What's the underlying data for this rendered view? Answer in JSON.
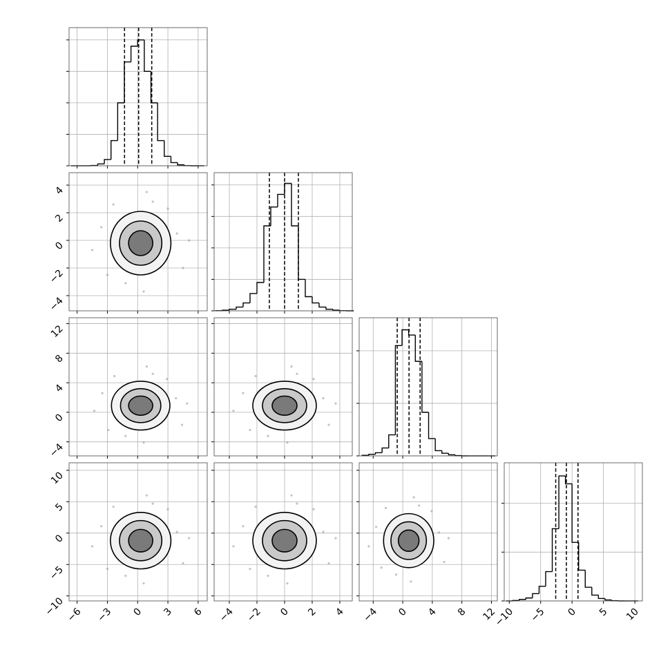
{
  "chart_data": {
    "type": "corner",
    "grid": true,
    "color": "#000000",
    "variables": [
      {
        "xlim": [
          -6.8,
          6.9
        ],
        "xticks": [
          {
            "value": -6,
            "label": "−6"
          },
          {
            "value": -3,
            "label": "−3"
          },
          0,
          3,
          6
        ],
        "quantiles": [
          -1.3,
          0.1,
          1.4
        ],
        "hist": {
          "bins": [
            -6.6,
            -5.94,
            -5.28,
            -4.62,
            -3.96,
            -3.3,
            -2.64,
            -1.98,
            -1.32,
            -0.66,
            0,
            0.66,
            1.32,
            1.98,
            2.64,
            3.3,
            3.96,
            4.62,
            5.28,
            5.94,
            6.6
          ],
          "counts": [
            0,
            0,
            0,
            10,
            60,
            200,
            800,
            2000,
            3300,
            3800,
            4000,
            3000,
            2000,
            800,
            300,
            100,
            30,
            5,
            0,
            0
          ],
          "ylim": [
            0,
            4390
          ],
          "yticks": [
            0,
            1000,
            2000,
            3000,
            4000
          ]
        }
      },
      {
        "xlim": [
          -5.1,
          4.9
        ],
        "xticks": [
          {
            "value": -4,
            "label": "−4"
          },
          {
            "value": -2,
            "label": "−2"
          },
          0,
          2,
          4
        ],
        "quantiles": [
          -1.1,
          0,
          1.0
        ],
        "hist": {
          "bins": [
            -5,
            -4.5,
            -4,
            -3.5,
            -3,
            -2.5,
            -2,
            -1.5,
            -1,
            -0.5,
            0,
            0.5,
            1,
            1.5,
            2,
            2.5,
            3,
            3.5,
            4,
            4.5,
            5
          ],
          "counts": [
            5,
            20,
            50,
            120,
            250,
            550,
            900,
            2700,
            3300,
            3700,
            4050,
            2700,
            1000,
            450,
            250,
            120,
            50,
            20,
            5,
            0
          ],
          "ylim": [
            0,
            4390
          ],
          "yticks": [
            0,
            1000,
            2000,
            3000,
            4000
          ]
        }
      },
      {
        "xlim": [
          -5.9,
          12.8
        ],
        "xticks": [
          {
            "value": -4,
            "label": "−4"
          },
          0,
          4,
          8,
          12
        ],
        "quantiles": [
          -0.75,
          0.85,
          2.35
        ],
        "hist": {
          "bins": [
            -5.5,
            -4.6,
            -3.7,
            -2.8,
            -1.9,
            -1.0,
            -0.1,
            0.8,
            1.7,
            2.6,
            3.5,
            4.4,
            5.3,
            6.2,
            7.1,
            8.0,
            8.9,
            9.8,
            10.7,
            11.6,
            12.5
          ],
          "counts": [
            10,
            30,
            60,
            150,
            400,
            2100,
            2400,
            2300,
            1800,
            830,
            330,
            100,
            50,
            20,
            5,
            0,
            0,
            0,
            0,
            0
          ],
          "ylim": [
            0,
            2630
          ],
          "yticks": [
            0,
            1000,
            2000
          ]
        }
      },
      {
        "xlim": [
          -10.8,
          11.2
        ],
        "xticks": [
          {
            "value": -10,
            "label": "−10"
          },
          {
            "value": -5,
            "label": "−5"
          },
          0,
          5,
          10
        ],
        "quantiles": [
          -2.6,
          -0.9,
          0.95
        ],
        "hist": {
          "bins": [
            -10.5,
            -9.45,
            -8.4,
            -7.35,
            -6.3,
            -5.25,
            -4.2,
            -3.15,
            -2.1,
            -1.05,
            0,
            1.05,
            2.1,
            3.15,
            4.2,
            5.25,
            6.3,
            7.35,
            8.4,
            9.45,
            10.5
          ],
          "counts": [
            0,
            10,
            30,
            60,
            150,
            300,
            600,
            1480,
            2560,
            2400,
            1200,
            630,
            280,
            120,
            50,
            20,
            5,
            0,
            0,
            0
          ],
          "ylim": [
            0,
            2830
          ],
          "yticks": [
            0,
            1000,
            2000
          ]
        }
      }
    ],
    "pairs": [
      {
        "x_var": 0,
        "y_var": 1,
        "center": [
          0.3,
          -0.2
        ],
        "contours": [
          [
            3,
            2.3
          ],
          [
            2.1,
            1.6
          ],
          [
            1.2,
            0.9
          ]
        ],
        "points": {
          "x": [
            3.9,
            -3.6,
            1.5,
            -1.2,
            4.5,
            -3.0,
            3.0,
            -2.4,
            5.1,
            -4.5,
            0.6,
            0.9
          ],
          "y": [
            0.5,
            0.95,
            2.8,
            -3.1,
            -2.0,
            -2.5,
            2.3,
            2.6,
            0.0,
            -0.7,
            -3.7,
            3.5
          ]
        }
      },
      {
        "x_var": 0,
        "y_var": 2,
        "center": [
          0.3,
          0.9
        ],
        "contours": [
          [
            2.9,
            3.3
          ],
          [
            2.0,
            2.3
          ],
          [
            1.2,
            1.3
          ]
        ],
        "points": {
          "x": [
            3.8,
            -3.5,
            1.5,
            -1.2,
            4.4,
            -2.9,
            2.9,
            -2.3,
            4.9,
            -4.3,
            0.6,
            0.9
          ],
          "y": [
            1.9,
            2.6,
            5.2,
            -3.2,
            -1.7,
            -2.4,
            4.5,
            4.9,
            1.2,
            0.2,
            -4.1,
            6.2
          ]
        }
      },
      {
        "x_var": 1,
        "y_var": 2,
        "center": [
          0,
          0.9
        ],
        "contours": [
          [
            2.3,
            3.3
          ],
          [
            1.6,
            2.3
          ],
          [
            0.9,
            1.3
          ]
        ],
        "points": {
          "x": [
            2.8,
            -3.0,
            0.9,
            -1.2,
            3.2,
            -2.5,
            2.1,
            -2.1,
            3.7,
            -3.7,
            0.2,
            0.5
          ],
          "y": [
            1.9,
            2.6,
            5.2,
            -3.2,
            -1.7,
            -2.4,
            4.5,
            4.9,
            1.2,
            0.2,
            -4.1,
            6.2
          ]
        }
      },
      {
        "x_var": 0,
        "y_var": 3,
        "center": [
          0.3,
          -1.2
        ],
        "contours": [
          [
            3,
            4.5
          ],
          [
            2.1,
            3.2
          ],
          [
            1.2,
            1.8
          ]
        ],
        "points": {
          "x": [
            3.9,
            -3.6,
            1.5,
            -1.2,
            4.5,
            -3.0,
            3.0,
            -2.4,
            5.1,
            -4.5,
            0.6,
            0.9
          ],
          "y": [
            0.2,
            1.1,
            4.7,
            -6.8,
            -4.8,
            -5.7,
            3.8,
            4.2,
            -0.8,
            -2.1,
            -8.0,
            6.0
          ]
        }
      },
      {
        "x_var": 1,
        "y_var": 3,
        "center": [
          0,
          -1.2
        ],
        "contours": [
          [
            2.3,
            4.5
          ],
          [
            1.6,
            3.2
          ],
          [
            0.9,
            1.8
          ]
        ],
        "points": {
          "x": [
            2.8,
            -3.0,
            0.9,
            -1.2,
            3.2,
            -2.5,
            2.1,
            -2.1,
            3.7,
            -3.7,
            0.2,
            0.5
          ],
          "y": [
            0.2,
            1.1,
            4.7,
            -6.8,
            -4.8,
            -5.7,
            3.8,
            4.2,
            -0.8,
            -2.1,
            -8.0,
            6.0
          ]
        }
      },
      {
        "x_var": 2,
        "y_var": 3,
        "center": [
          0.8,
          -1.2
        ],
        "contours": [
          [
            3.4,
            4.3
          ],
          [
            2.4,
            3.0
          ],
          [
            1.4,
            1.7
          ]
        ],
        "points": {
          "x": [
            4.9,
            -3.6,
            2.2,
            -0.9,
            5.6,
            -2.9,
            3.9,
            -2.3,
            6.2,
            -4.6,
            1.1,
            1.5
          ],
          "y": [
            0.1,
            1.0,
            4.4,
            -6.6,
            -4.6,
            -5.5,
            3.5,
            4.0,
            -0.8,
            -2.1,
            -7.7,
            5.7
          ]
        }
      }
    ]
  }
}
